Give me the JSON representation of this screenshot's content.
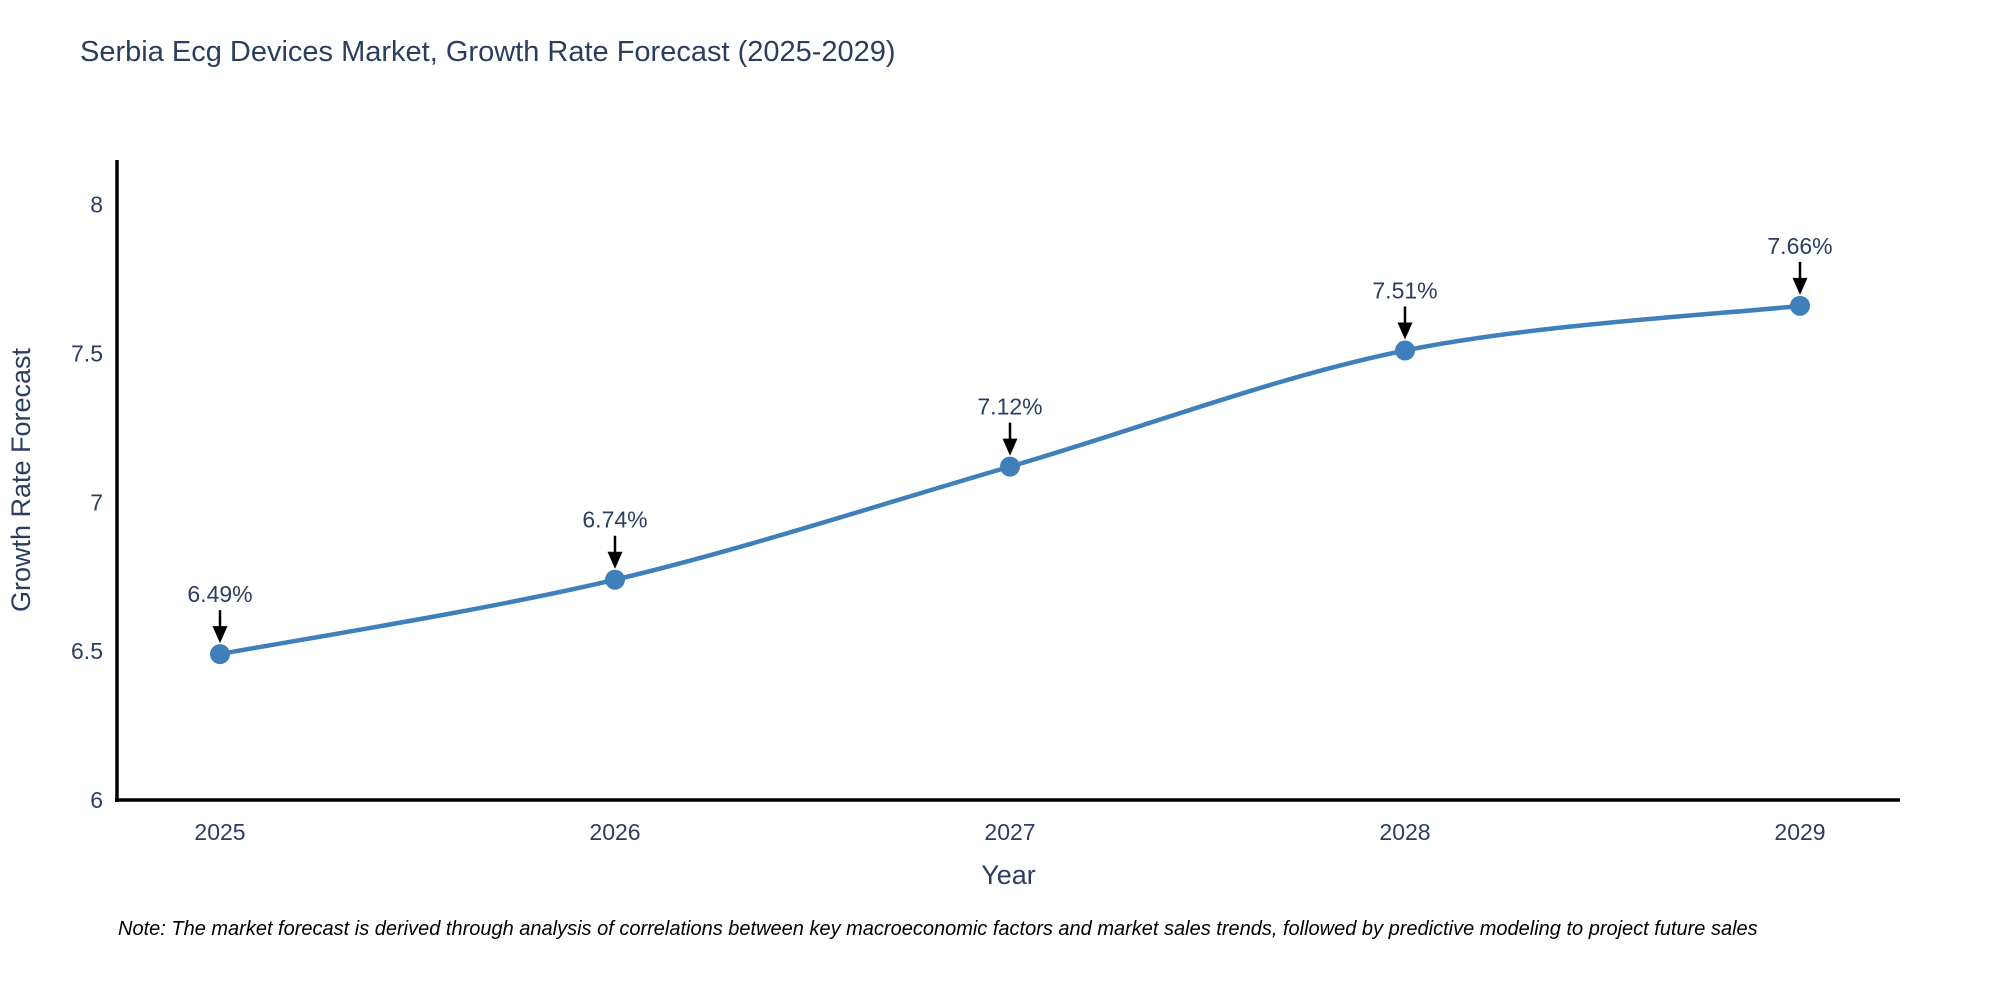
{
  "title": "Serbia Ecg Devices Market, Growth Rate Forecast (2025-2029)",
  "note": "Note: The market forecast is derived through analysis of correlations between key macroeconomic factors and market sales trends, followed by predictive modeling to project future sales",
  "colors": {
    "line": "#3f7fba",
    "marker": "#3f7fba",
    "text": "#2a3f5f",
    "axis": "#000000",
    "arrow": "#000000",
    "background": "#ffffff"
  },
  "chart_data": {
    "type": "line",
    "title": "Serbia Ecg Devices Market, Growth Rate Forecast (2025-2029)",
    "categories": [
      "2025",
      "2026",
      "2027",
      "2028",
      "2029"
    ],
    "x": [
      2025,
      2026,
      2027,
      2028,
      2029
    ],
    "values": [
      6.49,
      6.74,
      7.12,
      7.51,
      7.66
    ],
    "point_labels": [
      "6.49%",
      "6.74%",
      "7.12%",
      "7.51%",
      "7.66%"
    ],
    "xlabel": "Year",
    "ylabel": "Growth Rate Forecast",
    "ylim": [
      6,
      8.15
    ],
    "yticks": [
      6,
      6.5,
      7,
      7.5,
      8
    ],
    "grid": false,
    "legend": "none",
    "line_shape": "spline",
    "annotation_arrows": true
  }
}
